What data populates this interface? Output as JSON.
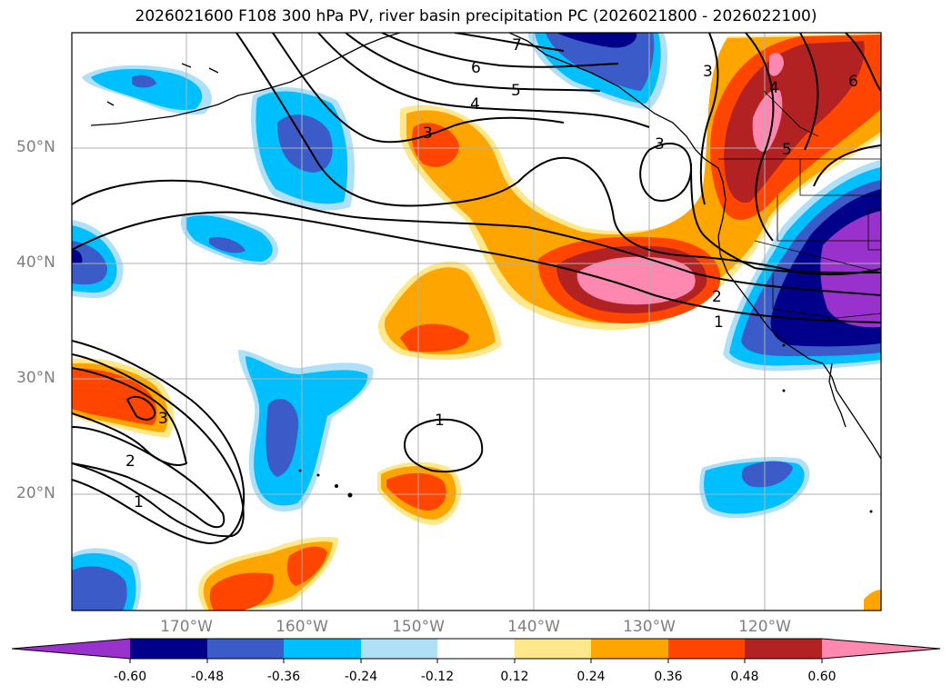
{
  "title": "2026021600 F108 300 hPa PV, river basin precipitation PC (2026021800 - 2026022100)",
  "lat_ticks": [
    "50°N",
    "40°N",
    "30°N",
    "20°N"
  ],
  "lon_ticks": [
    "170°W",
    "160°W",
    "150°W",
    "140°W",
    "130°W",
    "120°W"
  ],
  "colorbar": {
    "colors": [
      "#9932cc",
      "#00008b",
      "#3a5bc8",
      "#00bfff",
      "#b0e0f8",
      "#ffffff",
      "#ffe88c",
      "#ffa500",
      "#ff4500",
      "#b22222",
      "#ff88b0"
    ],
    "tick_labels": [
      "-0.60",
      "-0.48",
      "-0.36",
      "-0.24",
      "-0.12",
      "0.12",
      "0.24",
      "0.36",
      "0.48",
      "0.60"
    ]
  },
  "contour_labels": [
    "7",
    "6",
    "5",
    "4",
    "3",
    "3",
    "3",
    "4",
    "5",
    "6",
    "2",
    "1",
    "1",
    "3",
    "2",
    "1"
  ],
  "chart_data": {
    "type": "map",
    "title": "2026021600 F108 300 hPa PV, river basin precipitation PC (2026021800 - 2026022100)",
    "field_shaded": "river basin precipitation PC",
    "field_contoured": "300 hPa PV",
    "lon_range": [
      "180°",
      "110°W"
    ],
    "lat_range": [
      "10°N",
      "60°N"
    ],
    "shading_levels": [
      -0.6,
      -0.48,
      -0.36,
      -0.24,
      -0.12,
      0.12,
      0.24,
      0.36,
      0.48,
      0.6
    ],
    "contour_levels": [
      1,
      2,
      3,
      4,
      5,
      6,
      7
    ]
  }
}
